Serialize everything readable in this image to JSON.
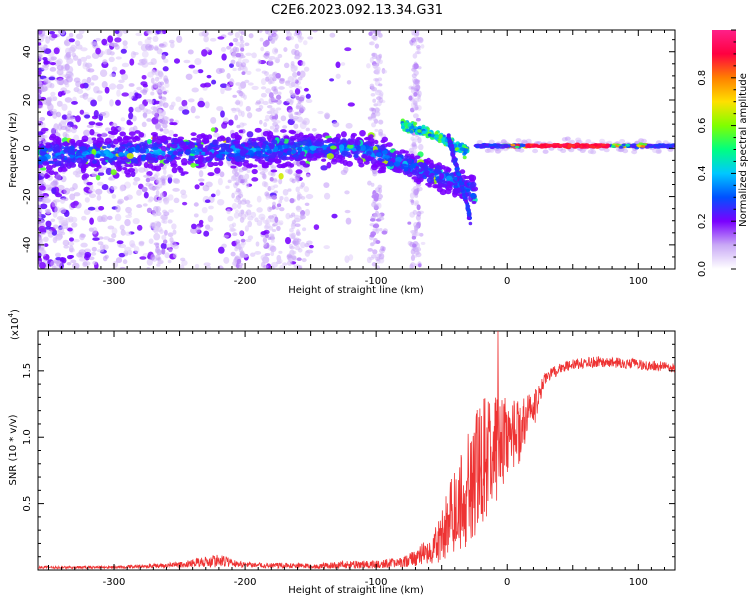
{
  "title": "C2E6.2023.092.13.34.G31",
  "chart_data": [
    {
      "type": "heatmap",
      "title": "C2E6.2023.092.13.34.G31",
      "xlabel": "Height of straight line (km)",
      "ylabel": "Frequency (Hz)",
      "xlim": [
        -358,
        128
      ],
      "ylim": [
        -50,
        49
      ],
      "x_ticks": [
        -300,
        -200,
        -100,
        0,
        100
      ],
      "x_tick_labels": [
        "-300",
        "-200",
        "-100",
        "0",
        "100"
      ],
      "y_ticks": [
        -40,
        -20,
        0,
        20,
        40
      ],
      "y_tick_labels": [
        "-40",
        "-20",
        "0",
        "20",
        "40"
      ],
      "colorbar": {
        "label": "Normalized spectral amplitude",
        "range": [
          0,
          1
        ],
        "ticks": [
          0.0,
          0.2,
          0.4,
          0.6,
          0.8
        ],
        "tick_labels": [
          "0.0",
          "0.2",
          "0.4",
          "0.6",
          "0.8"
        ],
        "colormap": [
          "#ffffff",
          "#c9a9f6",
          "#7a00ff",
          "#0050ff",
          "#00c8ff",
          "#00ff80",
          "#80ff00",
          "#ffe000",
          "#ff8000",
          "#ff0040",
          "#ff2088"
        ]
      },
      "features": [
        {
          "name": "main-band",
          "x": [
            -358,
            -300,
            -250,
            -200,
            -150,
            -120,
            -100,
            -80,
            -60,
            -40,
            -25
          ],
          "y": [
            -3,
            -2,
            -1,
            -1,
            0,
            0,
            -2,
            -6,
            -10,
            -14,
            -18
          ],
          "amplitude": 0.3
        },
        {
          "name": "upper-branch",
          "x": [
            -80,
            -70,
            -60,
            -50,
            -40,
            -30
          ],
          "y": [
            10,
            8,
            6,
            4,
            1,
            -1
          ],
          "amplitude": 0.45
        },
        {
          "name": "steep-branch",
          "x": [
            -45,
            -40,
            -35,
            -30,
            -28
          ],
          "y": [
            5,
            -5,
            -15,
            -25,
            -30
          ],
          "amplitude": 0.2
        },
        {
          "name": "steady-line",
          "x": [
            -25,
            0,
            25,
            50,
            75,
            100,
            128
          ],
          "y": [
            1,
            1,
            1,
            1,
            1,
            1,
            1
          ],
          "amplitude": 0.85
        }
      ]
    },
    {
      "type": "line",
      "xlabel": "Height of straight line (km)",
      "ylabel": "SNR (10 * v/v)",
      "y_multiplier": "(x10",
      "y_exponent": "4",
      "y_exp_close": ")",
      "xlim": [
        -358,
        128
      ],
      "ylim": [
        0,
        1.8
      ],
      "x_ticks": [
        -300,
        -200,
        -100,
        0,
        100
      ],
      "x_tick_labels": [
        "-300",
        "-200",
        "-100",
        "0",
        "100"
      ],
      "y_ticks": [
        0.5,
        1.0,
        1.5
      ],
      "y_tick_labels": [
        "0.5",
        "1.0",
        "1.5"
      ],
      "color": "#ee3333",
      "series": [
        {
          "name": "SNR",
          "x": [
            -358,
            -300,
            -250,
            -220,
            -200,
            -150,
            -120,
            -100,
            -80,
            -70,
            -60,
            -50,
            -40,
            -35,
            -30,
            -25,
            -20,
            -15,
            -10,
            -8,
            -5,
            0,
            10,
            20,
            25,
            30,
            40,
            50,
            70,
            100,
            128
          ],
          "y": [
            0.02,
            0.02,
            0.04,
            0.07,
            0.04,
            0.03,
            0.04,
            0.04,
            0.06,
            0.09,
            0.15,
            0.25,
            0.45,
            0.55,
            0.6,
            0.7,
            0.8,
            0.85,
            0.9,
            0.9,
            0.95,
            1.0,
            1.05,
            1.2,
            1.35,
            1.45,
            1.52,
            1.55,
            1.57,
            1.55,
            1.52
          ],
          "noise_amplitude": [
            0.01,
            0.01,
            0.02,
            0.05,
            0.02,
            0.02,
            0.03,
            0.03,
            0.04,
            0.06,
            0.1,
            0.2,
            0.35,
            0.4,
            0.45,
            0.45,
            0.5,
            0.45,
            0.4,
            0.4,
            0.35,
            0.3,
            0.25,
            0.15,
            0.08,
            0.05,
            0.04,
            0.04,
            0.04,
            0.04,
            0.04
          ],
          "peak": {
            "x": -7,
            "y": 1.8
          }
        }
      ]
    }
  ]
}
